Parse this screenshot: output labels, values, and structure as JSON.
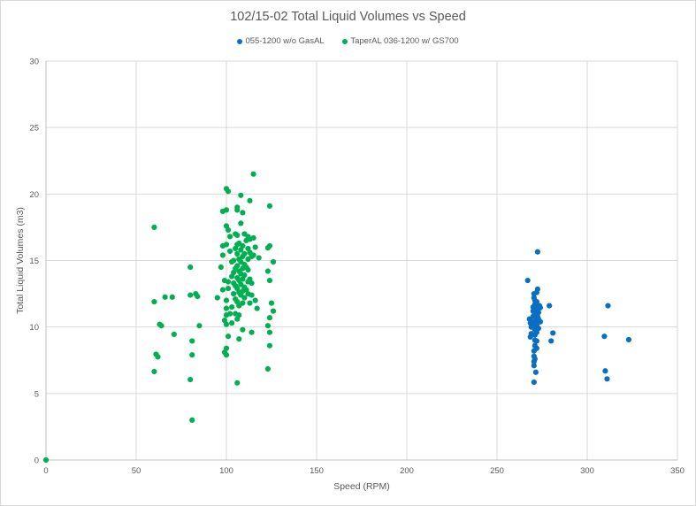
{
  "chart_data": {
    "type": "scatter",
    "title": "102/15-02 Total Liquid Volumes vs Speed",
    "xlabel": "Speed (RPM)",
    "ylabel": "Total Liquid Volumes (m3)",
    "xlim": [
      0,
      350
    ],
    "ylim": [
      0,
      30
    ],
    "xticks": [
      0,
      50,
      100,
      150,
      200,
      250,
      300,
      350
    ],
    "yticks": [
      0,
      5,
      10,
      15,
      20,
      25,
      30
    ],
    "grid": true,
    "legend_position": "top",
    "series": [
      {
        "name": "055-1200 w/o GasAL",
        "color": "#0a6fc2",
        "points": [
          [
            267,
            13.5
          ],
          [
            272.5,
            15.65
          ],
          [
            268,
            10.6
          ],
          [
            268.5,
            10.3
          ],
          [
            269,
            10.0
          ],
          [
            269,
            9.5
          ],
          [
            268.5,
            9.25
          ],
          [
            269.5,
            10.4
          ],
          [
            270,
            10.8
          ],
          [
            270,
            11.2
          ],
          [
            270,
            11.5
          ],
          [
            270.5,
            12.2
          ],
          [
            270.5,
            12.5
          ],
          [
            271,
            12.0
          ],
          [
            271,
            11.7
          ],
          [
            271,
            11.0
          ],
          [
            271,
            10.2
          ],
          [
            271,
            9.8
          ],
          [
            271,
            9.4
          ],
          [
            271,
            9.0
          ],
          [
            271,
            8.6
          ],
          [
            270.5,
            8.2
          ],
          [
            270.5,
            7.8
          ],
          [
            270.5,
            7.4
          ],
          [
            270.5,
            7.1
          ],
          [
            271,
            7.6
          ],
          [
            271.5,
            10.5
          ],
          [
            271.5,
            11.3
          ],
          [
            272,
            10.1
          ],
          [
            272,
            9.6
          ],
          [
            272,
            11.9
          ],
          [
            272,
            12.6
          ],
          [
            272.5,
            12.85
          ],
          [
            272.5,
            10.8
          ],
          [
            272.5,
            10.3
          ],
          [
            273,
            11.1
          ],
          [
            273,
            10.6
          ],
          [
            273,
            9.9
          ],
          [
            273,
            11.5
          ],
          [
            273.5,
            11.6
          ],
          [
            274,
            11.45
          ],
          [
            274,
            10.4
          ],
          [
            272,
            8.95
          ],
          [
            272,
            8.4
          ],
          [
            271.5,
            6.6
          ],
          [
            270.5,
            5.85
          ],
          [
            279,
            11.6
          ],
          [
            280,
            8.95
          ],
          [
            281,
            9.55
          ],
          [
            309.5,
            9.3
          ],
          [
            310,
            6.7
          ],
          [
            311,
            6.1
          ],
          [
            311.5,
            11.6
          ],
          [
            323,
            9.05
          ]
        ]
      },
      {
        "name": "TaperAL 036-1200 w/ GS700",
        "color": "#00b050",
        "points": [
          [
            0,
            0
          ],
          [
            60,
            17.5
          ],
          [
            60,
            11.9
          ],
          [
            60,
            6.65
          ],
          [
            61,
            7.95
          ],
          [
            62,
            7.75
          ],
          [
            63,
            10.2
          ],
          [
            64,
            10.1
          ],
          [
            66,
            12.25
          ],
          [
            70,
            12.25
          ],
          [
            71,
            9.45
          ],
          [
            80,
            14.5
          ],
          [
            80,
            12.4
          ],
          [
            80,
            6.05
          ],
          [
            81,
            8.95
          ],
          [
            81,
            7.9
          ],
          [
            81,
            3.0
          ],
          [
            83,
            12.5
          ],
          [
            84,
            12.3
          ],
          [
            85,
            10.1
          ],
          [
            95,
            12.2
          ],
          [
            97,
            14.5
          ],
          [
            98,
            18.7
          ],
          [
            98,
            16.1
          ],
          [
            98,
            15.4
          ],
          [
            98,
            12.8
          ],
          [
            99,
            13.5
          ],
          [
            99,
            10.5
          ],
          [
            99,
            8.1
          ],
          [
            100,
            20.4
          ],
          [
            100,
            18.8
          ],
          [
            100,
            17.6
          ],
          [
            100,
            16.2
          ],
          [
            100,
            12.0
          ],
          [
            100,
            11.4
          ],
          [
            100,
            10.9
          ],
          [
            100,
            10.2
          ],
          [
            100,
            8.4
          ],
          [
            100,
            7.9
          ],
          [
            101,
            20.2
          ],
          [
            101,
            17.3
          ],
          [
            101,
            13.4
          ],
          [
            101,
            12.9
          ],
          [
            101,
            9.3
          ],
          [
            102,
            16.8
          ],
          [
            102,
            15.7
          ],
          [
            102,
            11.0
          ],
          [
            103,
            14.9
          ],
          [
            103,
            13.8
          ],
          [
            103,
            11.5
          ],
          [
            103,
            10.3
          ],
          [
            104,
            15.0
          ],
          [
            104,
            14.1
          ],
          [
            104,
            13.3
          ],
          [
            104,
            12.5
          ],
          [
            105,
            17.0
          ],
          [
            105,
            15.9
          ],
          [
            105,
            14.4
          ],
          [
            105,
            13.1
          ],
          [
            105,
            12.1
          ],
          [
            105,
            11.0
          ],
          [
            106,
            19.0
          ],
          [
            106,
            18.8
          ],
          [
            106,
            16.9
          ],
          [
            106,
            16.2
          ],
          [
            106,
            15.5
          ],
          [
            106,
            14.6
          ],
          [
            106,
            13.7
          ],
          [
            106,
            12.9
          ],
          [
            106,
            11.9
          ],
          [
            106,
            10.6
          ],
          [
            106,
            5.8
          ],
          [
            107,
            16.3
          ],
          [
            107,
            15.1
          ],
          [
            107,
            14.2
          ],
          [
            107,
            13.5
          ],
          [
            107,
            12.6
          ],
          [
            107,
            11.6
          ],
          [
            107,
            10.9
          ],
          [
            107,
            9.1
          ],
          [
            108,
            19.9
          ],
          [
            108,
            17.8
          ],
          [
            108,
            15.8
          ],
          [
            108,
            14.9
          ],
          [
            108,
            14.0
          ],
          [
            108,
            13.2
          ],
          [
            108,
            12.4
          ],
          [
            109,
            18.6
          ],
          [
            109,
            16.1
          ],
          [
            109,
            15.3
          ],
          [
            109,
            14.4
          ],
          [
            109,
            13.6
          ],
          [
            109,
            12.7
          ],
          [
            109,
            11.8
          ],
          [
            109,
            9.8
          ],
          [
            110,
            17.0
          ],
          [
            110,
            15.5
          ],
          [
            110,
            14.7
          ],
          [
            110,
            13.9
          ],
          [
            110,
            13.0
          ],
          [
            110,
            12.2
          ],
          [
            111,
            16.5
          ],
          [
            111,
            14.5
          ],
          [
            111,
            12.8
          ],
          [
            112,
            16.8
          ],
          [
            112,
            15.9
          ],
          [
            112,
            15.1
          ],
          [
            112,
            14.3
          ],
          [
            112,
            13.4
          ],
          [
            112,
            12.5
          ],
          [
            113,
            19.5
          ],
          [
            113,
            16.6
          ],
          [
            113,
            15.6
          ],
          [
            113,
            13.6
          ],
          [
            113,
            11.8
          ],
          [
            114,
            15.3
          ],
          [
            114,
            13.3
          ],
          [
            114,
            12.4
          ],
          [
            114,
            9.6
          ],
          [
            115,
            21.5
          ],
          [
            115,
            16.7
          ],
          [
            115,
            15.4
          ],
          [
            116,
            16.0
          ],
          [
            116,
            12.0
          ],
          [
            117,
            11.4
          ],
          [
            118,
            15.2
          ],
          [
            123,
            15.95
          ],
          [
            123,
            14.2
          ],
          [
            123,
            10.1
          ],
          [
            123,
            6.85
          ],
          [
            124,
            19.1
          ],
          [
            124,
            16.1
          ],
          [
            124,
            13.5
          ],
          [
            124,
            10.7
          ],
          [
            124,
            9.6
          ],
          [
            124,
            8.6
          ],
          [
            125,
            11.8
          ],
          [
            126,
            14.9
          ],
          [
            126,
            11.2
          ]
        ]
      }
    ]
  }
}
